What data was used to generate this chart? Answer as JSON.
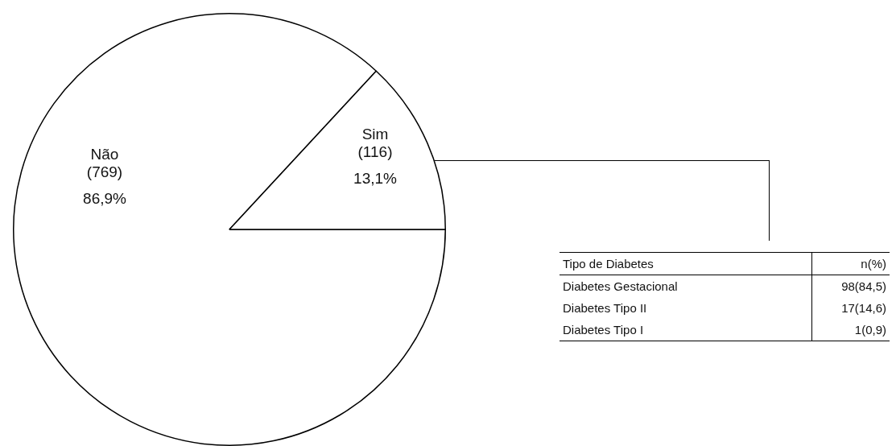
{
  "chart_data": [
    {
      "type": "pie",
      "categories": [
        "Não",
        "Sim"
      ],
      "values": [
        769,
        116
      ],
      "colors": [
        "#ffffff",
        "#ffffff"
      ],
      "value_labels": [
        "(769)\n86,9%",
        "(116)\n13,1%"
      ],
      "legend": false
    },
    {
      "type": "other",
      "xlabel": "Tipo de Diabetes",
      "ylabel": "n(%)",
      "categories": [
        "Diabetes Gestacional",
        "Diabetes Tipo II",
        "Diabetes Tipo I"
      ],
      "value_labels": [
        "98(84,5)",
        "17(14,6)",
        "1(0,9)"
      ]
    }
  ]
}
